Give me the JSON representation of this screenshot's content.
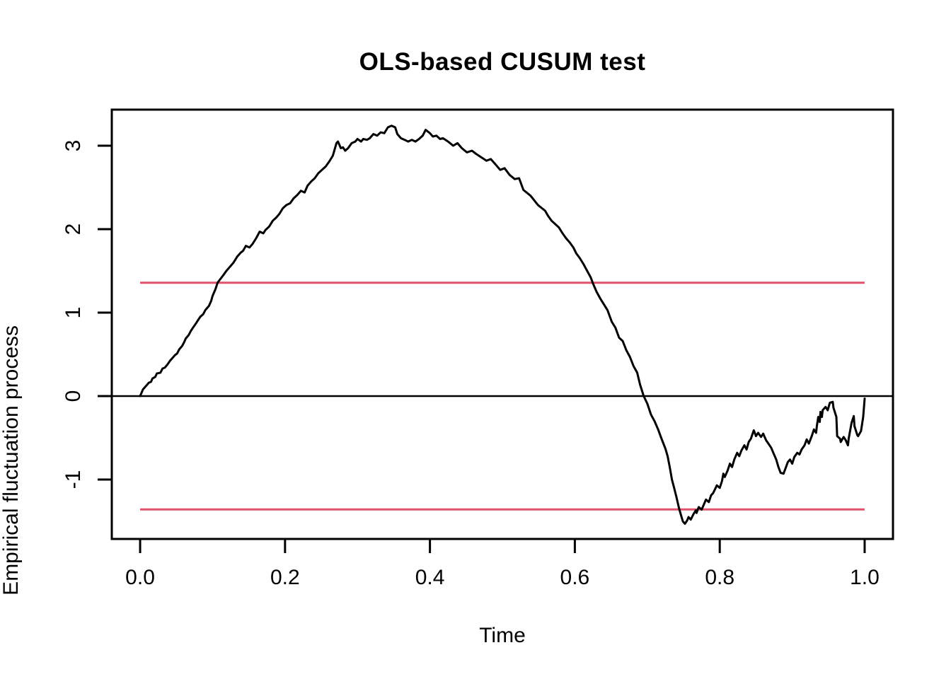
{
  "figure": {
    "title": "OLS-based CUSUM test",
    "xlabel": "Time",
    "ylabel": "Empirical fluctuation process"
  },
  "colors": {
    "background": "#ffffff",
    "axis": "#000000",
    "curve": "#000000",
    "boundary": "#DF536B",
    "zero_line": "#000000"
  },
  "chart_data": {
    "type": "line",
    "title": "OLS-based CUSUM test",
    "xlabel": "Time",
    "ylabel": "Empirical fluctuation process",
    "grid": false,
    "legend_position": "none",
    "xlim": [
      -0.0391,
      1.0391
    ],
    "ylim": [
      -1.712,
      3.432
    ],
    "x_ticks": {
      "values": [
        0.0,
        0.2,
        0.4,
        0.6,
        0.8,
        1.0
      ],
      "labels": [
        "0.0",
        "0.2",
        "0.4",
        "0.6",
        "0.8",
        "1.0"
      ]
    },
    "y_ticks": {
      "values": [
        -1,
        0,
        1,
        2,
        3
      ],
      "labels": [
        "-1",
        "0",
        "1",
        "2",
        "3"
      ]
    },
    "reference_lines": {
      "zero_line": {
        "y": 0,
        "color": "#000000",
        "x_start": -0.0391,
        "x_end": 1.0391
      },
      "boundaries": [
        {
          "y": 1.358,
          "color": "#DF536B",
          "x_start": 0,
          "x_end": 1
        },
        {
          "y": -1.358,
          "color": "#DF536B",
          "x_start": 0,
          "x_end": 1
        }
      ]
    },
    "series": [
      {
        "name": "empirical-fluctuation-process",
        "color": "#000000",
        "points": [
          [
            0.0,
            0.0
          ],
          [
            0.004,
            0.08
          ],
          [
            0.009,
            0.13
          ],
          [
            0.012,
            0.16
          ],
          [
            0.015,
            0.17
          ],
          [
            0.017,
            0.21
          ],
          [
            0.021,
            0.23
          ],
          [
            0.023,
            0.27
          ],
          [
            0.028,
            0.28
          ],
          [
            0.031,
            0.33
          ],
          [
            0.034,
            0.34
          ],
          [
            0.038,
            0.38
          ],
          [
            0.041,
            0.42
          ],
          [
            0.044,
            0.45
          ],
          [
            0.048,
            0.49
          ],
          [
            0.051,
            0.51
          ],
          [
            0.054,
            0.56
          ],
          [
            0.058,
            0.6
          ],
          [
            0.061,
            0.65
          ],
          [
            0.063,
            0.69
          ],
          [
            0.067,
            0.73
          ],
          [
            0.07,
            0.78
          ],
          [
            0.073,
            0.82
          ],
          [
            0.077,
            0.87
          ],
          [
            0.08,
            0.91
          ],
          [
            0.083,
            0.95
          ],
          [
            0.087,
            0.98
          ],
          [
            0.09,
            1.03
          ],
          [
            0.095,
            1.08
          ],
          [
            0.098,
            1.14
          ],
          [
            0.1,
            1.2
          ],
          [
            0.104,
            1.28
          ],
          [
            0.107,
            1.36
          ],
          [
            0.114,
            1.44
          ],
          [
            0.119,
            1.5
          ],
          [
            0.124,
            1.55
          ],
          [
            0.129,
            1.6
          ],
          [
            0.134,
            1.67
          ],
          [
            0.139,
            1.72
          ],
          [
            0.142,
            1.74
          ],
          [
            0.146,
            1.8
          ],
          [
            0.151,
            1.78
          ],
          [
            0.155,
            1.82
          ],
          [
            0.16,
            1.89
          ],
          [
            0.165,
            1.97
          ],
          [
            0.17,
            1.95
          ],
          [
            0.173,
            1.99
          ],
          [
            0.178,
            2.03
          ],
          [
            0.183,
            2.1
          ],
          [
            0.188,
            2.14
          ],
          [
            0.192,
            2.18
          ],
          [
            0.197,
            2.25
          ],
          [
            0.202,
            2.29
          ],
          [
            0.207,
            2.31
          ],
          [
            0.212,
            2.37
          ],
          [
            0.217,
            2.41
          ],
          [
            0.222,
            2.46
          ],
          [
            0.227,
            2.44
          ],
          [
            0.231,
            2.52
          ],
          [
            0.236,
            2.57
          ],
          [
            0.241,
            2.61
          ],
          [
            0.246,
            2.67
          ],
          [
            0.251,
            2.71
          ],
          [
            0.256,
            2.75
          ],
          [
            0.261,
            2.81
          ],
          [
            0.266,
            2.88
          ],
          [
            0.271,
            3.03
          ],
          [
            0.273,
            3.05
          ],
          [
            0.277,
            2.97
          ],
          [
            0.28,
            2.98
          ],
          [
            0.283,
            2.94
          ],
          [
            0.287,
            2.97
          ],
          [
            0.292,
            3.03
          ],
          [
            0.297,
            3.05
          ],
          [
            0.3,
            3.08
          ],
          [
            0.305,
            3.05
          ],
          [
            0.308,
            3.08
          ],
          [
            0.313,
            3.07
          ],
          [
            0.317,
            3.09
          ],
          [
            0.322,
            3.14
          ],
          [
            0.327,
            3.12
          ],
          [
            0.332,
            3.16
          ],
          [
            0.337,
            3.15
          ],
          [
            0.342,
            3.22
          ],
          [
            0.347,
            3.24
          ],
          [
            0.352,
            3.22
          ],
          [
            0.355,
            3.14
          ],
          [
            0.36,
            3.09
          ],
          [
            0.365,
            3.07
          ],
          [
            0.37,
            3.05
          ],
          [
            0.375,
            3.07
          ],
          [
            0.38,
            3.05
          ],
          [
            0.385,
            3.08
          ],
          [
            0.39,
            3.12
          ],
          [
            0.394,
            3.19
          ],
          [
            0.4,
            3.15
          ],
          [
            0.404,
            3.11
          ],
          [
            0.409,
            3.12
          ],
          [
            0.414,
            3.08
          ],
          [
            0.418,
            3.09
          ],
          [
            0.425,
            3.05
          ],
          [
            0.432,
            3.0
          ],
          [
            0.438,
            3.03
          ],
          [
            0.444,
            2.97
          ],
          [
            0.451,
            2.92
          ],
          [
            0.458,
            2.94
          ],
          [
            0.464,
            2.9
          ],
          [
            0.471,
            2.86
          ],
          [
            0.478,
            2.82
          ],
          [
            0.484,
            2.84
          ],
          [
            0.49,
            2.78
          ],
          [
            0.497,
            2.71
          ],
          [
            0.503,
            2.73
          ],
          [
            0.51,
            2.65
          ],
          [
            0.517,
            2.6
          ],
          [
            0.523,
            2.61
          ],
          [
            0.529,
            2.47
          ],
          [
            0.539,
            2.4
          ],
          [
            0.549,
            2.29
          ],
          [
            0.559,
            2.22
          ],
          [
            0.563,
            2.16
          ],
          [
            0.568,
            2.1
          ],
          [
            0.578,
            2.02
          ],
          [
            0.583,
            1.95
          ],
          [
            0.588,
            1.89
          ],
          [
            0.593,
            1.84
          ],
          [
            0.598,
            1.78
          ],
          [
            0.602,
            1.71
          ],
          [
            0.607,
            1.65
          ],
          [
            0.612,
            1.58
          ],
          [
            0.617,
            1.5
          ],
          [
            0.622,
            1.42
          ],
          [
            0.625,
            1.35
          ],
          [
            0.63,
            1.25
          ],
          [
            0.635,
            1.17
          ],
          [
            0.64,
            1.1
          ],
          [
            0.645,
            1.03
          ],
          [
            0.651,
            0.89
          ],
          [
            0.656,
            0.82
          ],
          [
            0.661,
            0.7
          ],
          [
            0.666,
            0.66
          ],
          [
            0.671,
            0.55
          ],
          [
            0.676,
            0.47
          ],
          [
            0.681,
            0.36
          ],
          [
            0.686,
            0.28
          ],
          [
            0.69,
            0.14
          ],
          [
            0.695,
            0.0
          ],
          [
            0.7,
            -0.09
          ],
          [
            0.705,
            -0.22
          ],
          [
            0.71,
            -0.3
          ],
          [
            0.715,
            -0.4
          ],
          [
            0.72,
            -0.52
          ],
          [
            0.725,
            -0.63
          ],
          [
            0.728,
            -0.72
          ],
          [
            0.731,
            -0.85
          ],
          [
            0.734,
            -1.0
          ],
          [
            0.737,
            -1.1
          ],
          [
            0.74,
            -1.2
          ],
          [
            0.744,
            -1.35
          ],
          [
            0.747,
            -1.44
          ],
          [
            0.749,
            -1.5
          ],
          [
            0.752,
            -1.53
          ],
          [
            0.755,
            -1.49
          ],
          [
            0.757,
            -1.45
          ],
          [
            0.76,
            -1.48
          ],
          [
            0.764,
            -1.41
          ],
          [
            0.767,
            -1.37
          ],
          [
            0.768,
            -1.4
          ],
          [
            0.771,
            -1.33
          ],
          [
            0.775,
            -1.36
          ],
          [
            0.778,
            -1.3
          ],
          [
            0.781,
            -1.24
          ],
          [
            0.785,
            -1.27
          ],
          [
            0.788,
            -1.19
          ],
          [
            0.791,
            -1.16
          ],
          [
            0.796,
            -1.07
          ],
          [
            0.8,
            -1.1
          ],
          [
            0.803,
            -1.02
          ],
          [
            0.805,
            -0.93
          ],
          [
            0.807,
            -0.97
          ],
          [
            0.811,
            -0.89
          ],
          [
            0.814,
            -0.81
          ],
          [
            0.817,
            -0.85
          ],
          [
            0.82,
            -0.76
          ],
          [
            0.824,
            -0.68
          ],
          [
            0.827,
            -0.72
          ],
          [
            0.83,
            -0.65
          ],
          [
            0.834,
            -0.59
          ],
          [
            0.837,
            -0.64
          ],
          [
            0.84,
            -0.55
          ],
          [
            0.843,
            -0.51
          ],
          [
            0.847,
            -0.41
          ],
          [
            0.85,
            -0.48
          ],
          [
            0.853,
            -0.44
          ],
          [
            0.857,
            -0.49
          ],
          [
            0.86,
            -0.45
          ],
          [
            0.864,
            -0.53
          ],
          [
            0.868,
            -0.58
          ],
          [
            0.871,
            -0.62
          ],
          [
            0.874,
            -0.68
          ],
          [
            0.878,
            -0.76
          ],
          [
            0.881,
            -0.85
          ],
          [
            0.884,
            -0.92
          ],
          [
            0.888,
            -0.93
          ],
          [
            0.891,
            -0.86
          ],
          [
            0.894,
            -0.79
          ],
          [
            0.897,
            -0.76
          ],
          [
            0.9,
            -0.81
          ],
          [
            0.903,
            -0.73
          ],
          [
            0.907,
            -0.68
          ],
          [
            0.91,
            -0.7
          ],
          [
            0.913,
            -0.64
          ],
          [
            0.917,
            -0.59
          ],
          [
            0.92,
            -0.52
          ],
          [
            0.923,
            -0.57
          ],
          [
            0.927,
            -0.48
          ],
          [
            0.93,
            -0.4
          ],
          [
            0.933,
            -0.44
          ],
          [
            0.934,
            -0.36
          ],
          [
            0.936,
            -0.25
          ],
          [
            0.938,
            -0.31
          ],
          [
            0.939,
            -0.19
          ],
          [
            0.941,
            -0.25
          ],
          [
            0.942,
            -0.17
          ],
          [
            0.946,
            -0.13
          ],
          [
            0.949,
            -0.17
          ],
          [
            0.952,
            -0.08
          ],
          [
            0.956,
            -0.07
          ],
          [
            0.957,
            -0.14
          ],
          [
            0.961,
            -0.25
          ],
          [
            0.962,
            -0.48
          ],
          [
            0.966,
            -0.51
          ],
          [
            0.967,
            -0.55
          ],
          [
            0.971,
            -0.49
          ],
          [
            0.974,
            -0.53
          ],
          [
            0.977,
            -0.59
          ],
          [
            0.978,
            -0.51
          ],
          [
            0.982,
            -0.32
          ],
          [
            0.985,
            -0.24
          ],
          [
            0.986,
            -0.36
          ],
          [
            0.99,
            -0.47
          ],
          [
            0.991,
            -0.48
          ],
          [
            0.995,
            -0.42
          ],
          [
            0.996,
            -0.36
          ],
          [
            0.998,
            -0.25
          ],
          [
            1.0,
            -0.03
          ]
        ]
      }
    ]
  }
}
